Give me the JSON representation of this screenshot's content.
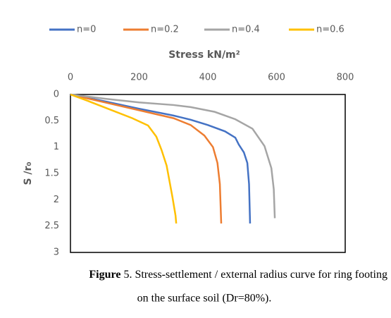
{
  "chart_data": {
    "type": "line",
    "xlabel": "Stress kN/m²",
    "ylabel": "S /r₀",
    "xlim": [
      0,
      800
    ],
    "xticks": [
      0,
      200,
      400,
      600,
      800
    ],
    "x_axis_position": "top",
    "ylim": [
      0,
      3
    ],
    "yticks": [
      0,
      0.5,
      1,
      1.5,
      2,
      2.5,
      3
    ],
    "y_reversed": true,
    "grid": false,
    "legend": "top",
    "series": [
      {
        "name": "n=0",
        "color": "#4472c4",
        "x": [
          0,
          100,
          200,
          300,
          350,
          400,
          450,
          480,
          490,
          505,
          515,
          520,
          523
        ],
        "values": [
          0,
          0.13,
          0.27,
          0.4,
          0.48,
          0.58,
          0.7,
          0.82,
          0.95,
          1.1,
          1.3,
          1.7,
          2.45
        ]
      },
      {
        "name": "n=0.2",
        "color": "#ed7d31",
        "x": [
          0,
          100,
          200,
          300,
          350,
          390,
          415,
          428,
          435,
          439
        ],
        "values": [
          0,
          0.15,
          0.3,
          0.45,
          0.58,
          0.78,
          1.0,
          1.3,
          1.7,
          2.45
        ]
      },
      {
        "name": "n=0.4",
        "color": "#a5a5a5",
        "x": [
          0,
          100,
          200,
          300,
          350,
          420,
          480,
          530,
          565,
          585,
          592,
          595
        ],
        "values": [
          0,
          0.08,
          0.15,
          0.2,
          0.24,
          0.33,
          0.47,
          0.65,
          0.98,
          1.4,
          1.8,
          2.35
        ]
      },
      {
        "name": "n=0.6",
        "color": "#ffc000",
        "x": [
          0,
          50,
          113,
          180,
          226,
          250,
          265,
          280,
          297,
          306,
          308
        ],
        "values": [
          0,
          0.12,
          0.28,
          0.45,
          0.59,
          0.8,
          1.05,
          1.35,
          1.95,
          2.3,
          2.45
        ]
      }
    ]
  },
  "caption": {
    "label": "Figure",
    "line1": " 5. Stress-settlement / external radius curve for ring footing",
    "line2": "on the surface soil (Dr=80%)."
  }
}
